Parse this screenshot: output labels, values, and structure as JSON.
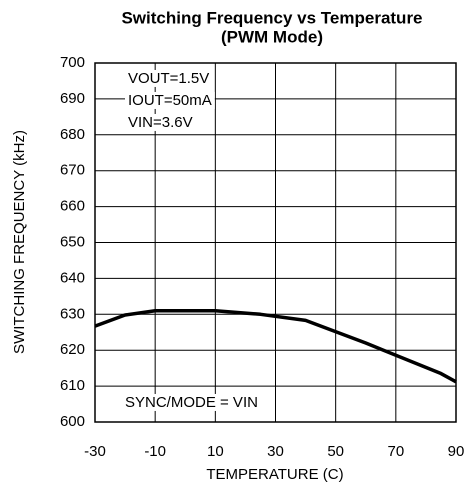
{
  "chart_data": {
    "type": "line",
    "title": "Switching Frequency vs Temperature",
    "subtitle": "(PWM Mode)",
    "xlabel": "TEMPERATURE (C)",
    "ylabel": "SWITCHING FREQUENCY (kHz)",
    "annotations": [
      "VOUT=1.5V",
      "IOUT=50mA",
      "VIN=3.6V",
      "SYNC/MODE = VIN"
    ],
    "x": [
      -30,
      -20,
      -10,
      0,
      10,
      25,
      40,
      60,
      85,
      90
    ],
    "series": [
      {
        "color": "#000000",
        "values": [
          626.7,
          629.8,
          631,
          631,
          631,
          630,
          628.3,
          622,
          613.5,
          611.2
        ]
      }
    ],
    "xlim": [
      -30,
      90
    ],
    "xticks": [
      -30,
      -10,
      10,
      30,
      50,
      70,
      90
    ],
    "ylim": [
      600,
      700
    ],
    "yticks": [
      600,
      610,
      620,
      630,
      640,
      650,
      660,
      670,
      680,
      690,
      700
    ],
    "grid": true
  }
}
